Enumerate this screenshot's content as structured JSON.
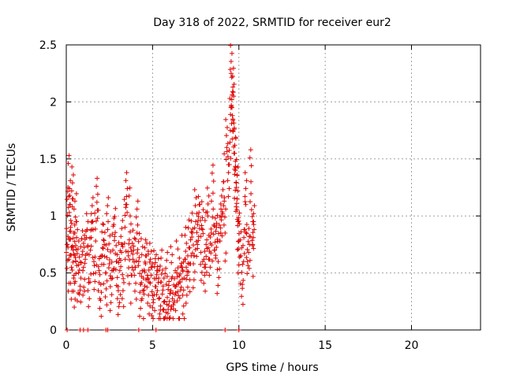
{
  "chart_data": {
    "type": "scatter",
    "title": "Day 318 of 2022, SRMTID for receiver eur2",
    "xlabel": "GPS time / hours",
    "ylabel": "SRMTID / TECUs",
    "xlim": [
      0,
      24
    ],
    "ylim": [
      0,
      2.5
    ],
    "xticks": [
      0,
      5,
      10,
      15,
      20
    ],
    "xtick_labels": [
      "0",
      "5",
      "10",
      "15",
      "20"
    ],
    "yticks": [
      0,
      0.5,
      1,
      1.5,
      2,
      2.5
    ],
    "ytick_labels": [
      "0",
      "0.5",
      "1",
      "1.5",
      "2",
      "2.5"
    ],
    "grid": true,
    "marker": "plus",
    "color": "#e00000",
    "series": [
      {
        "name": "SRMTID",
        "x": [
          0.05,
          0.1,
          0.15,
          0.2,
          0.25,
          0.3,
          0.35,
          0.4,
          0.45,
          0.5,
          0.55,
          0.6,
          0.7,
          0.8,
          0.9,
          1.0,
          1.1,
          1.2,
          1.3,
          1.4,
          1.5,
          1.6,
          1.7,
          1.8,
          1.9,
          2.0,
          2.1,
          2.2,
          2.3,
          2.4,
          2.5,
          2.6,
          2.7,
          2.8,
          2.9,
          3.0,
          3.1,
          3.2,
          3.3,
          3.4,
          3.5,
          3.6,
          3.7,
          3.8,
          3.9,
          4.0,
          4.1,
          4.2,
          4.3,
          4.4,
          4.5,
          4.6,
          4.7,
          4.8,
          4.9,
          5.0,
          5.1,
          5.2,
          5.3,
          5.4,
          5.5,
          5.6,
          5.7,
          5.8,
          5.9,
          6.0,
          6.1,
          6.2,
          6.3,
          6.4,
          6.5,
          6.6,
          6.7,
          6.8,
          6.9,
          7.0,
          7.1,
          7.2,
          7.3,
          7.4,
          7.5,
          7.6,
          7.7,
          7.8,
          7.9,
          8.0,
          8.1,
          8.2,
          8.3,
          8.4,
          8.5,
          8.6,
          8.7,
          8.8,
          8.9,
          9.0,
          9.1,
          9.2,
          9.3,
          9.4,
          9.5,
          9.55,
          9.6,
          9.65,
          9.7,
          9.75,
          9.8,
          9.85,
          9.9,
          9.95,
          10.0,
          10.1,
          10.2,
          10.3,
          10.4,
          10.5,
          10.6,
          10.7,
          10.8,
          10.85
        ],
        "y": [
          0.75,
          1.25,
          0.62,
          1.1,
          0.9,
          0.55,
          1.15,
          0.7,
          0.48,
          0.85,
          0.6,
          0.95,
          0.5,
          0.35,
          0.8,
          0.55,
          0.62,
          0.88,
          0.45,
          0.7,
          0.95,
          0.6,
          0.78,
          1.05,
          0.52,
          0.4,
          0.65,
          0.75,
          0.5,
          0.88,
          0.58,
          0.45,
          0.7,
          0.82,
          0.6,
          0.38,
          0.52,
          0.75,
          0.45,
          0.9,
          1.1,
          0.65,
          1.0,
          0.48,
          0.7,
          0.55,
          0.85,
          0.6,
          0.4,
          0.52,
          0.35,
          0.65,
          0.48,
          0.42,
          0.55,
          0.3,
          0.45,
          0.38,
          0.52,
          0.28,
          0.42,
          0.35,
          0.25,
          0.4,
          0.18,
          0.32,
          0.45,
          0.22,
          0.38,
          0.5,
          0.3,
          0.42,
          0.55,
          0.35,
          0.62,
          0.48,
          0.72,
          0.58,
          0.85,
          0.65,
          0.95,
          0.75,
          1.1,
          0.68,
          0.88,
          0.55,
          0.75,
          1.0,
          0.62,
          0.85,
          1.2,
          0.7,
          0.9,
          0.6,
          0.78,
          1.0,
          1.3,
          0.85,
          1.6,
          1.45,
          1.75,
          2.25,
          1.95,
          1.85,
          2.05,
          1.55,
          1.4,
          1.25,
          1.15,
          0.95,
          0.78,
          0.65,
          0.4,
          0.88,
          1.1,
          0.6,
          0.82,
          1.3,
          0.75,
          0.95
        ]
      }
    ],
    "flag_values_at_zero_x": [
      0.05,
      0.8,
      1.0,
      1.25,
      2.3,
      2.4,
      4.2,
      5.2,
      9.2,
      10.0
    ]
  }
}
